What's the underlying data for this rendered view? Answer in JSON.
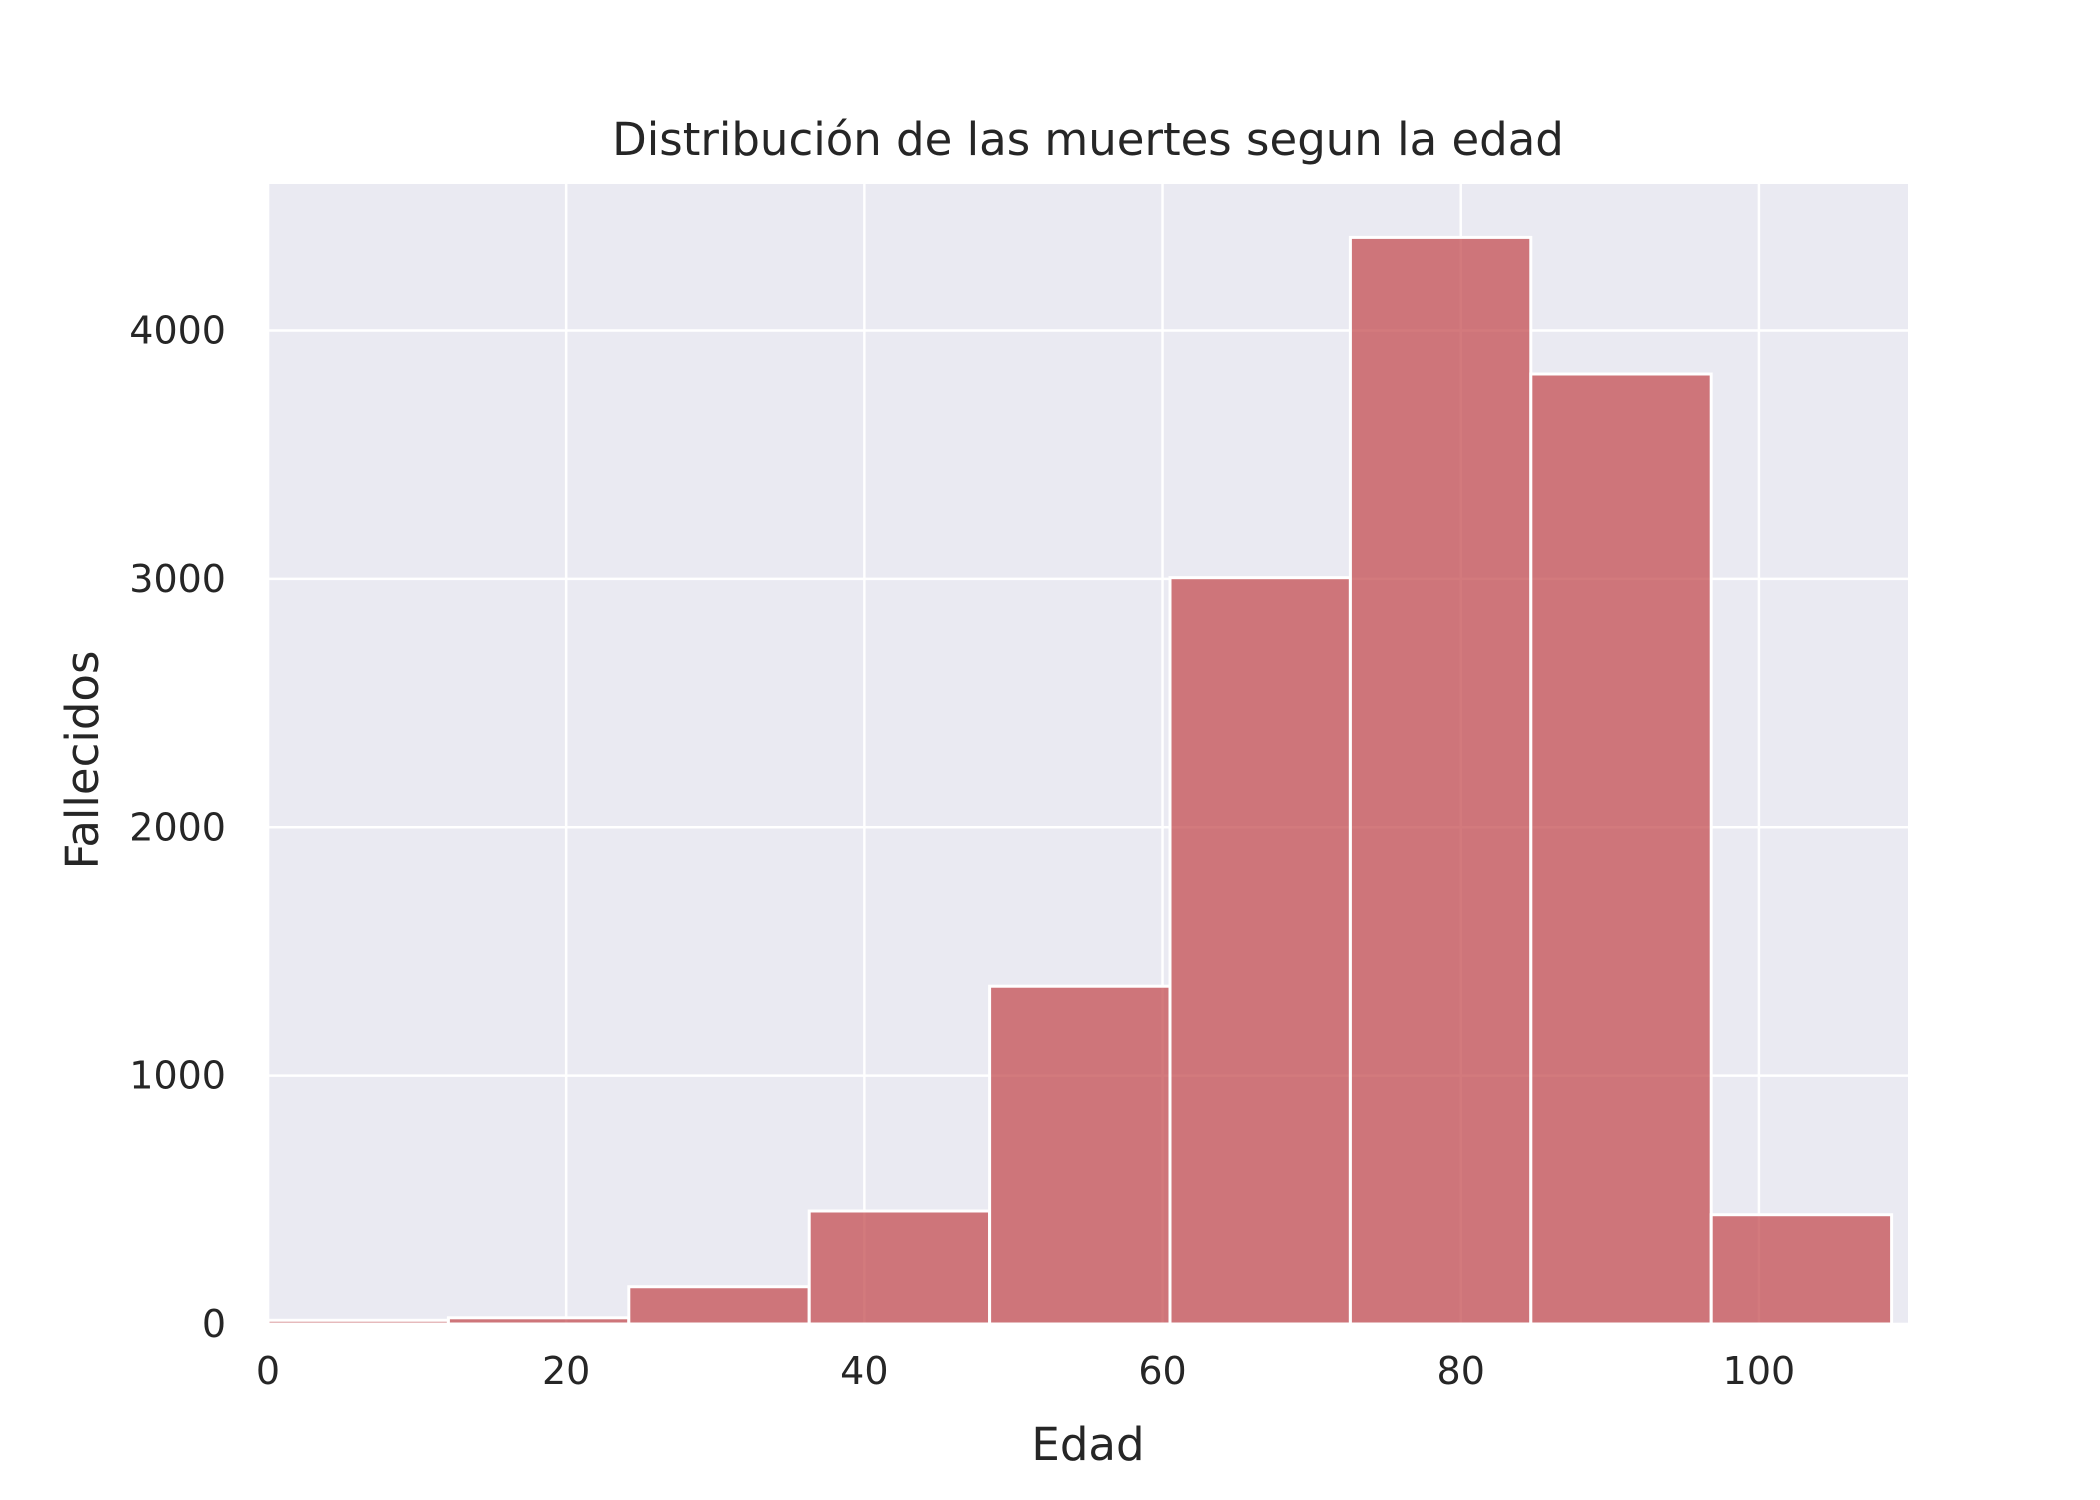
{
  "chart_data": {
    "type": "bar",
    "title": "Distribución de las muertes segun la edad",
    "xlabel": "Edad",
    "ylabel": "Fallecidos",
    "bin_edges": [
      0,
      12.1,
      24.2,
      36.3,
      48.4,
      60.5,
      72.6,
      84.7,
      96.8,
      108.9
    ],
    "values": [
      15,
      25,
      150,
      455,
      1360,
      3005,
      4375,
      3825,
      440
    ],
    "xlim": [
      0,
      110
    ],
    "ylim": [
      0,
      4590
    ],
    "xticks": [
      0,
      20,
      40,
      60,
      80,
      100
    ],
    "yticks": [
      0,
      1000,
      2000,
      3000,
      4000
    ],
    "grid": true,
    "colors": {
      "bar_fill": "#c44e52",
      "bar_edge": "#ffffff",
      "plot_background": "#eaeaf2",
      "grid": "#ffffff"
    }
  }
}
